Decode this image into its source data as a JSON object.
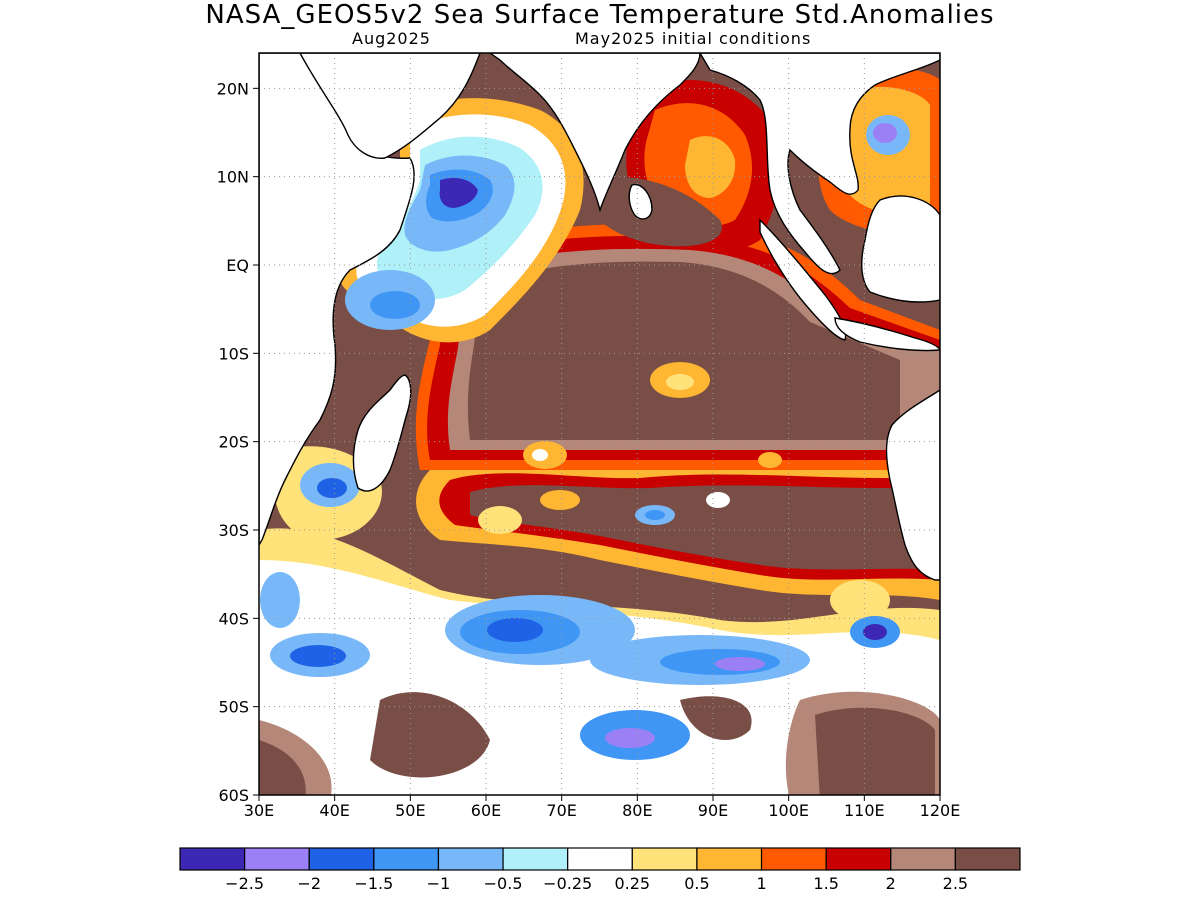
{
  "title": "NASA_GEOS5v2 Sea Surface Temperature Std.Anomalies",
  "subtitle_left": "Aug2025",
  "subtitle_right": "May2025 initial conditions",
  "map": {
    "lon_range": [
      30,
      120
    ],
    "lat_range": [
      -60,
      24
    ],
    "lon_ticks": [
      "30E",
      "40E",
      "50E",
      "60E",
      "70E",
      "80E",
      "90E",
      "100E",
      "110E",
      "120E"
    ],
    "lat_ticks": [
      "20N",
      "10N",
      "EQ",
      "10S",
      "20S",
      "30S",
      "40S",
      "50S",
      "60S"
    ],
    "gridlines": true,
    "land_color": "#ffffff"
  },
  "colorbar": {
    "colors": [
      "#3c28b4",
      "#9b80f5",
      "#1f62e6",
      "#3f96f5",
      "#78b8f8",
      "#b0f0f8",
      "#ffffff",
      "#ffe27a",
      "#ffb632",
      "#ff5a00",
      "#c80000",
      "#b48778",
      "#784e46"
    ],
    "labels": [
      "−2.5",
      "−2",
      "−1.5",
      "−1",
      "−0.5",
      "−0.25",
      "0.25",
      "0.5",
      "1",
      "1.5",
      "2",
      "2.5"
    ]
  }
}
